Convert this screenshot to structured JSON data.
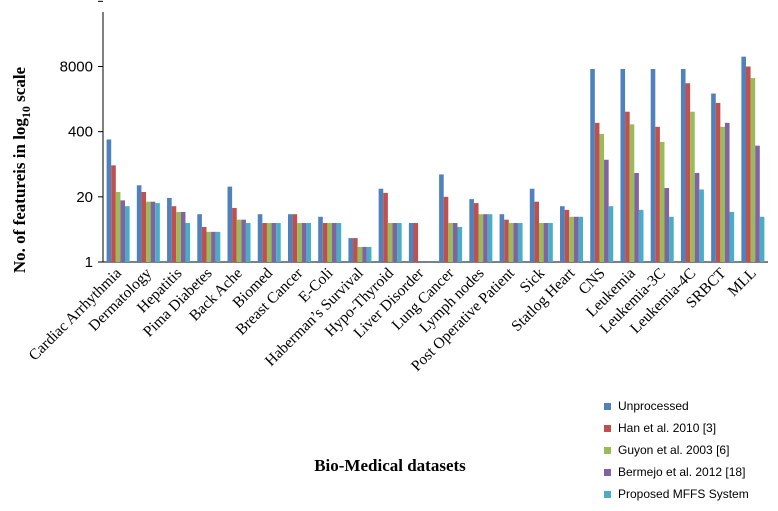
{
  "chart_data": {
    "type": "bar",
    "xlabel": "Bio-Medical datasets",
    "ylabel": {
      "main": "No. of featureis in log",
      "sub": "10",
      "tail": " scale"
    },
    "yscale": "log20",
    "ylim": [
      1,
      160000
    ],
    "yticks": [
      {
        "value": 1,
        "label": "1"
      },
      {
        "value": 20,
        "label": "20"
      },
      {
        "value": 400,
        "label": "400"
      },
      {
        "value": 8000,
        "label": "8000"
      }
    ],
    "categories": [
      "Cardiac Arrhythmia",
      "Dermatology",
      "Hepatitis",
      "Pima Diabetes",
      "Back Ache",
      "Biomed",
      "Breast Cancer",
      "E-Coli",
      "Haberman’s Survival",
      "Hypo-Thyroid",
      "Liver Disorder",
      "Lung Cancer",
      "Lymph nodes",
      "Post Operative Patient",
      "Sick",
      "Statlog Heart",
      "CNS",
      "Leukemia",
      "Leukemia-3C",
      "Leukemia-4C",
      "SRBCT",
      "MLL"
    ],
    "series": [
      {
        "name": "Unprocessed",
        "color": "#4F81BD",
        "values": [
          279,
          34,
          19,
          9,
          32,
          9,
          9,
          8,
          3,
          29,
          6,
          56,
          18,
          9,
          29,
          13,
          7129,
          7129,
          7129,
          7129,
          2308,
          12582
        ]
      },
      {
        "name": "Han et al. 2010 [3]",
        "color": "#C0504D",
        "values": [
          85,
          25,
          13,
          5,
          12,
          6,
          9,
          6,
          3,
          24,
          6,
          20,
          15,
          7,
          16,
          11,
          600,
          1000,
          500,
          3700,
          1500,
          8000
        ]
      },
      {
        "name": "Guyon et al. 2003 [6]",
        "color": "#9BBB59",
        "values": [
          25,
          16,
          10,
          4,
          7,
          6,
          6,
          6,
          2,
          6,
          1,
          6,
          9,
          6,
          6,
          8,
          360,
          560,
          250,
          1000,
          500,
          4700
        ]
      },
      {
        "name": "Bermejo et al. 2012 [18]",
        "color": "#8064A2",
        "values": [
          17,
          16,
          10,
          4,
          7,
          6,
          6,
          6,
          2,
          6,
          1,
          6,
          9,
          6,
          6,
          8,
          110,
          60,
          30,
          60,
          600,
          210
        ]
      },
      {
        "name": "Proposed  MFFS System",
        "color": "#4BACC6",
        "values": [
          13,
          15,
          6,
          4,
          6,
          6,
          6,
          6,
          2,
          6,
          1,
          5,
          9,
          6,
          6,
          8,
          13,
          11,
          8,
          28,
          10,
          8
        ]
      }
    ],
    "grid": false,
    "legend_position": "bottom-right"
  }
}
